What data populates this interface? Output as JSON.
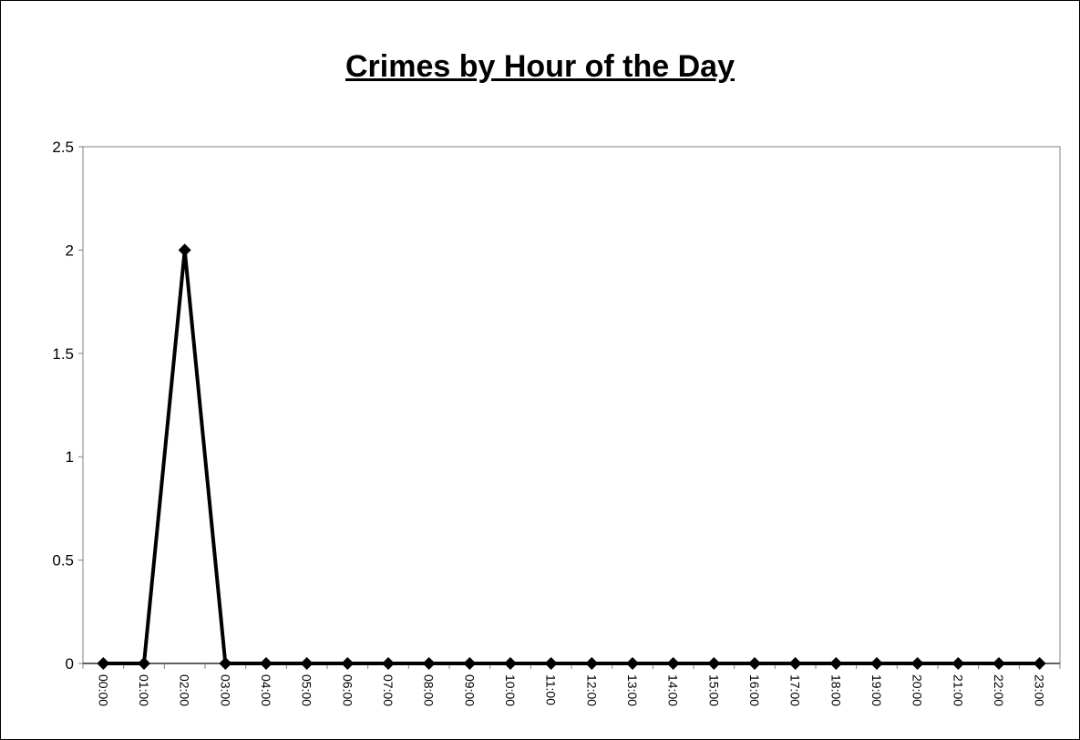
{
  "chart_data": {
    "type": "line",
    "title": "Crimes by Hour of the Day",
    "xlabel": "",
    "ylabel": "",
    "categories": [
      "00:00",
      "01:00",
      "02:00",
      "03:00",
      "04:00",
      "05:00",
      "06:00",
      "07:00",
      "08:00",
      "09:00",
      "10:00",
      "11:00",
      "12:00",
      "13:00",
      "14:00",
      "15:00",
      "16:00",
      "17:00",
      "18:00",
      "19:00",
      "20:00",
      "21:00",
      "22:00",
      "23:00"
    ],
    "series": [
      {
        "values": [
          0,
          0,
          2,
          0,
          0,
          0,
          0,
          0,
          0,
          0,
          0,
          0,
          0,
          0,
          0,
          0,
          0,
          0,
          0,
          0,
          0,
          0,
          0,
          0
        ]
      }
    ],
    "ylim": [
      0,
      2.5
    ],
    "yticks": [
      "0",
      "0.5",
      "1",
      "1.5",
      "2",
      "2.5"
    ],
    "grid": false,
    "legend": "none",
    "marker": "diamond",
    "colors": {
      "line": "#000000",
      "axis": "#808080",
      "background": "#ffffff"
    }
  }
}
